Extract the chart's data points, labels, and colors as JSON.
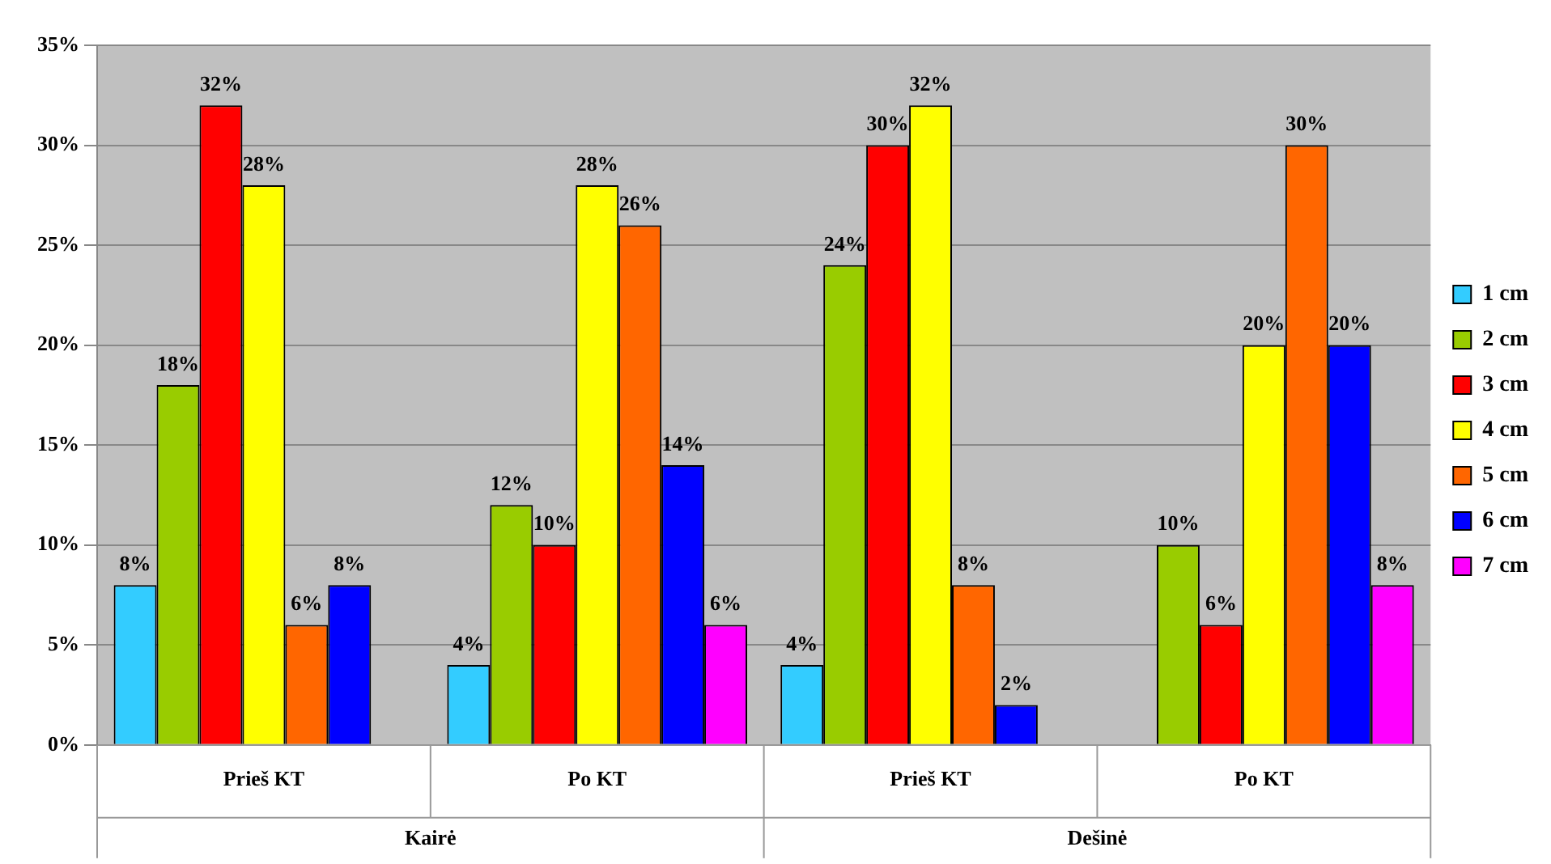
{
  "chart_data": {
    "type": "bar",
    "categories": [
      "Prieš KT",
      "Po KT",
      "Prieš KT",
      "Po KT"
    ],
    "annotations": [
      "Kairė",
      "Dešinė"
    ],
    "series": [
      {
        "name": "1 cm",
        "color": "#33ccff",
        "values": [
          8,
          4,
          4,
          null
        ],
        "value_labels": [
          "8%",
          "4%",
          "4%",
          null
        ]
      },
      {
        "name": "2 cm",
        "color": "#99cc00",
        "values": [
          18,
          12,
          24,
          10
        ],
        "value_labels": [
          "18%",
          "12%",
          "24%",
          "10%"
        ]
      },
      {
        "name": "3 cm",
        "color": "#ff0000",
        "values": [
          32,
          10,
          30,
          6
        ],
        "value_labels": [
          "32%",
          "10%",
          "30%",
          "6%"
        ]
      },
      {
        "name": "4 cm",
        "color": "#ffff00",
        "values": [
          28,
          28,
          32,
          20
        ],
        "value_labels": [
          "28%",
          "28%",
          "32%",
          "20%"
        ]
      },
      {
        "name": "5 cm",
        "color": "#ff6600",
        "values": [
          6,
          26,
          8,
          30
        ],
        "value_labels": [
          "6%",
          "26%",
          "8%",
          "30%"
        ]
      },
      {
        "name": "6 cm",
        "color": "#0000ff",
        "values": [
          8,
          14,
          2,
          20
        ],
        "value_labels": [
          "8%",
          "14%",
          "2%",
          "20%"
        ]
      },
      {
        "name": "7 cm",
        "color": "#ff00ff",
        "values": [
          null,
          6,
          null,
          8
        ],
        "value_labels": [
          null,
          "6%",
          null,
          "8%"
        ]
      }
    ],
    "ylim": [
      0,
      35
    ],
    "yticks": [
      {
        "value": 0,
        "label": "0%"
      },
      {
        "value": 5,
        "label": "5%"
      },
      {
        "value": 10,
        "label": "10%"
      },
      {
        "value": 15,
        "label": "15%"
      },
      {
        "value": 20,
        "label": "20%"
      },
      {
        "value": 25,
        "label": "25%"
      },
      {
        "value": 30,
        "label": "30%"
      },
      {
        "value": 35,
        "label": "35%"
      }
    ],
    "grid": "y",
    "legend": "right"
  }
}
